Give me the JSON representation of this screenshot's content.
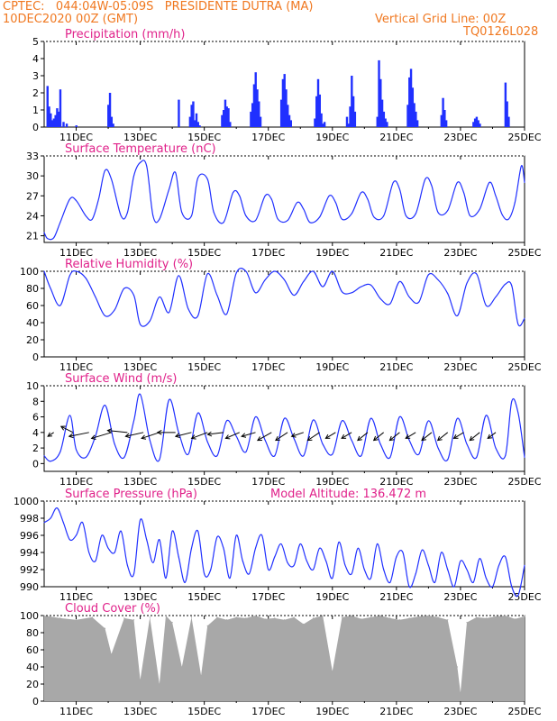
{
  "header": {
    "line1": "CPTEC:   044:04W-05:09S   PRESIDENTE DUTRA (MA)",
    "line2": "10DEC2020 00Z (GMT)",
    "grid_note": "Vertical Grid Line: 00Z",
    "run_id": "TQ0126L028"
  },
  "colors": {
    "header": "#f07820",
    "title": "#e0218a",
    "series": "#2030ff",
    "cloud": "#a8a8a8",
    "axis": "#000000"
  },
  "x_ticks": [
    "11DEC",
    "13DEC",
    "15DEC",
    "17DEC",
    "19DEC",
    "21DEC",
    "23DEC",
    "25DEC"
  ],
  "chart_data": [
    {
      "id": "precip",
      "type": "bar",
      "title": "Precipitation (mm/h)",
      "y_range": [
        0,
        5
      ],
      "y_ticks": [
        "0",
        "1",
        "2",
        "3",
        "4",
        "5"
      ],
      "x": [
        "10.10",
        "10.15",
        "10.20",
        "10.25",
        "10.30",
        "10.35",
        "10.40",
        "10.45",
        "10.50",
        "10.60",
        "10.70",
        "11.0",
        "12.00",
        "12.05",
        "12.10",
        "12.15",
        "14.20",
        "14.55",
        "14.60",
        "14.65",
        "14.70",
        "14.75",
        "14.80",
        "14.85",
        "15.55",
        "15.60",
        "15.65",
        "15.70",
        "15.75",
        "15.80",
        "16.45",
        "16.50",
        "16.55",
        "16.60",
        "16.65",
        "16.70",
        "16.75",
        "17.40",
        "17.45",
        "17.50",
        "17.55",
        "17.60",
        "17.65",
        "17.70",
        "18.45",
        "18.50",
        "18.55",
        "18.60",
        "18.65",
        "18.70",
        "18.75",
        "19.45",
        "19.50",
        "19.55",
        "19.60",
        "19.65",
        "19.70",
        "20.40",
        "20.45",
        "20.50",
        "20.55",
        "20.60",
        "20.65",
        "20.70",
        "21.35",
        "21.40",
        "21.45",
        "21.50",
        "21.55",
        "21.60",
        "21.65",
        "22.40",
        "22.45",
        "22.50",
        "22.55",
        "23.40",
        "23.45",
        "23.50",
        "23.55",
        "23.60",
        "24.40",
        "24.45",
        "24.50"
      ],
      "values": [
        2.4,
        1.2,
        0.8,
        0.4,
        0.5,
        0.7,
        1.1,
        0.9,
        2.2,
        0.3,
        0.2,
        0.1,
        1.3,
        2.0,
        0.6,
        0.2,
        1.6,
        0.6,
        1.3,
        1.5,
        0.4,
        0.8,
        0.3,
        0.1,
        0.7,
        1.0,
        1.6,
        1.2,
        1.1,
        0.3,
        0.9,
        1.4,
        2.5,
        3.2,
        2.2,
        1.5,
        0.6,
        1.6,
        2.8,
        3.1,
        2.2,
        1.3,
        0.7,
        0.4,
        0.5,
        1.8,
        2.8,
        1.9,
        0.8,
        0.2,
        0.3,
        0.6,
        0.2,
        1.2,
        3.0,
        1.8,
        0.9,
        0.6,
        3.9,
        2.8,
        1.6,
        0.9,
        0.5,
        0.3,
        1.3,
        2.9,
        3.4,
        2.3,
        1.4,
        0.9,
        0.4,
        0.7,
        1.7,
        1.0,
        0.4,
        0.3,
        0.5,
        0.6,
        0.4,
        0.2,
        2.6,
        1.5,
        0.6
      ]
    },
    {
      "id": "temp",
      "type": "line",
      "title": "Surface Temperature (nC)",
      "y_range": [
        20,
        33
      ],
      "y_ticks": [
        "21",
        "24",
        "27",
        "30",
        "33"
      ],
      "x": [
        10.0,
        10.1,
        10.3,
        10.5,
        10.8,
        11.0,
        11.3,
        11.5,
        11.7,
        11.9,
        12.1,
        12.4,
        12.6,
        12.8,
        13.0,
        13.2,
        13.4,
        13.6,
        13.9,
        14.1,
        14.3,
        14.6,
        14.8,
        15.1,
        15.3,
        15.6,
        15.9,
        16.1,
        16.3,
        16.6,
        16.9,
        17.1,
        17.3,
        17.6,
        17.9,
        18.1,
        18.3,
        18.6,
        18.9,
        19.1,
        19.3,
        19.6,
        19.9,
        20.1,
        20.3,
        20.6,
        20.9,
        21.1,
        21.3,
        21.6,
        21.9,
        22.1,
        22.3,
        22.6,
        22.9,
        23.1,
        23.3,
        23.6,
        23.9,
        24.1,
        24.3,
        24.5,
        24.7,
        24.9,
        25.0
      ],
      "values": [
        21.5,
        20.6,
        20.7,
        23.0,
        26.5,
        26.3,
        24.0,
        23.5,
        26.5,
        30.8,
        29.5,
        24.0,
        24.5,
        30.0,
        32.0,
        31.5,
        24.0,
        23.5,
        28.0,
        30.5,
        24.5,
        24.0,
        29.7,
        29.5,
        24.5,
        23.0,
        27.5,
        27.0,
        24.0,
        23.3,
        27.0,
        26.5,
        23.5,
        23.3,
        26.0,
        25.0,
        23.0,
        23.8,
        27.0,
        26.0,
        23.5,
        24.3,
        27.5,
        26.5,
        23.8,
        24.0,
        29.0,
        28.0,
        24.0,
        24.3,
        29.5,
        28.5,
        24.5,
        24.8,
        29.0,
        27.5,
        24.0,
        25.0,
        29.0,
        27.0,
        24.2,
        23.5,
        26.0,
        31.5,
        29.0
      ]
    },
    {
      "id": "rh",
      "type": "line",
      "title": "Relative Humidity (%)",
      "y_range": [
        0,
        100
      ],
      "y_ticks": [
        "0",
        "20",
        "40",
        "60",
        "80",
        "100"
      ],
      "x": [
        10.0,
        10.2,
        10.5,
        10.8,
        11.0,
        11.3,
        11.6,
        11.9,
        12.2,
        12.5,
        12.8,
        13.0,
        13.3,
        13.6,
        13.9,
        14.2,
        14.5,
        14.8,
        15.1,
        15.4,
        15.7,
        16.0,
        16.3,
        16.6,
        16.9,
        17.2,
        17.5,
        17.8,
        18.1,
        18.4,
        18.7,
        19.0,
        19.3,
        19.6,
        19.9,
        20.2,
        20.5,
        20.8,
        21.1,
        21.4,
        21.7,
        22.0,
        22.3,
        22.6,
        22.9,
        23.2,
        23.5,
        23.8,
        24.1,
        24.4,
        24.6,
        24.8,
        25.0
      ],
      "values": [
        100,
        80,
        60,
        95,
        100,
        92,
        70,
        48,
        55,
        80,
        72,
        38,
        42,
        70,
        52,
        95,
        56,
        48,
        97,
        72,
        50,
        98,
        100,
        75,
        90,
        100,
        90,
        72,
        88,
        100,
        82,
        100,
        76,
        75,
        82,
        84,
        68,
        62,
        88,
        70,
        64,
        96,
        90,
        74,
        48,
        86,
        97,
        60,
        70,
        85,
        83,
        38,
        45
      ]
    },
    {
      "id": "wind",
      "type": "line",
      "title": "Surface Wind (m/s)",
      "y_range": [
        -1,
        10
      ],
      "y_ticks": [
        "0",
        "2",
        "4",
        "6",
        "8",
        "10"
      ],
      "x": [
        10.0,
        10.2,
        10.5,
        10.8,
        11.0,
        11.3,
        11.6,
        11.9,
        12.2,
        12.5,
        12.8,
        13.0,
        13.3,
        13.6,
        13.9,
        14.2,
        14.5,
        14.8,
        15.1,
        15.4,
        15.7,
        16.0,
        16.3,
        16.6,
        16.9,
        17.2,
        17.5,
        17.8,
        18.1,
        18.4,
        18.7,
        19.0,
        19.3,
        19.6,
        19.9,
        20.2,
        20.5,
        20.8,
        21.1,
        21.4,
        21.7,
        22.0,
        22.3,
        22.6,
        22.9,
        23.2,
        23.5,
        23.8,
        24.1,
        24.4,
        24.6,
        24.8,
        25.0
      ],
      "values": [
        1.0,
        0.3,
        1.5,
        6.2,
        1.8,
        0.8,
        3.5,
        7.5,
        2.5,
        0.8,
        5.5,
        8.9,
        3.0,
        0.5,
        8.2,
        4.0,
        1.2,
        6.5,
        2.8,
        1.0,
        5.5,
        3.5,
        1.5,
        6.0,
        3.0,
        1.0,
        5.8,
        3.2,
        1.0,
        5.6,
        2.5,
        1.2,
        5.5,
        3.0,
        1.0,
        5.8,
        2.5,
        0.8,
        6.0,
        3.0,
        1.2,
        5.5,
        2.0,
        0.5,
        5.8,
        2.5,
        0.8,
        6.2,
        2.0,
        1.0,
        8.0,
        6.5,
        0.8
      ],
      "vectors": {
        "x": [
          10.3,
          10.9,
          11.4,
          12.1,
          12.6,
          13.1,
          13.6,
          14.1,
          14.6,
          15.1,
          15.6,
          16.1,
          16.6,
          17.1,
          17.6,
          18.1,
          18.6,
          19.1,
          19.6,
          20.1,
          20.6,
          21.1,
          21.6,
          22.1,
          22.6,
          23.1,
          23.6,
          24.1
        ],
        "u": [
          -0.3,
          -0.6,
          -1.0,
          -1.0,
          -1.0,
          -0.9,
          -0.9,
          -0.9,
          -0.8,
          -0.8,
          -0.8,
          -0.7,
          -0.7,
          -0.7,
          -0.6,
          -0.6,
          -0.6,
          -0.5,
          -0.5,
          -0.5,
          -0.5,
          -0.5,
          -0.5,
          -0.5,
          -0.5,
          -0.5,
          -0.5,
          -0.4
        ],
        "v": [
          -0.2,
          0.3,
          -0.2,
          -0.3,
          0.1,
          -0.2,
          -0.3,
          0.0,
          -0.2,
          -0.3,
          -0.1,
          -0.3,
          -0.2,
          -0.4,
          -0.4,
          -0.2,
          -0.4,
          -0.3,
          -0.3,
          -0.4,
          -0.4,
          -0.4,
          -0.3,
          -0.4,
          -0.4,
          -0.3,
          -0.4,
          -0.3
        ]
      }
    },
    {
      "id": "pres",
      "type": "line",
      "title": "Surface Pressure (hPa)",
      "annotation": "Model Altitude: 136.472 m",
      "y_range": [
        990,
        1000
      ],
      "y_ticks": [
        "990",
        "992",
        "994",
        "996",
        "998",
        "1000"
      ],
      "x": [
        10.0,
        10.2,
        10.4,
        10.6,
        10.8,
        11.0,
        11.2,
        11.4,
        11.6,
        11.8,
        12.0,
        12.2,
        12.4,
        12.6,
        12.8,
        13.0,
        13.2,
        13.4,
        13.6,
        13.8,
        14.0,
        14.2,
        14.4,
        14.6,
        14.8,
        15.0,
        15.2,
        15.4,
        15.6,
        15.8,
        16.0,
        16.2,
        16.4,
        16.6,
        16.8,
        17.0,
        17.2,
        17.4,
        17.6,
        17.8,
        18.0,
        18.2,
        18.4,
        18.6,
        18.8,
        19.0,
        19.2,
        19.4,
        19.6,
        19.8,
        20.0,
        20.2,
        20.4,
        20.6,
        20.8,
        21.0,
        21.2,
        21.4,
        21.6,
        21.8,
        22.0,
        22.2,
        22.4,
        22.6,
        22.8,
        23.0,
        23.2,
        23.4,
        23.6,
        23.8,
        24.0,
        24.2,
        24.4,
        24.6,
        24.8,
        25.0
      ],
      "values": [
        997.5,
        998.0,
        999.2,
        997.5,
        995.5,
        996.0,
        997.5,
        994.0,
        993.0,
        996.0,
        994.5,
        994.0,
        996.5,
        992.5,
        991.5,
        997.8,
        995.5,
        992.8,
        995.5,
        991.0,
        996.5,
        993.5,
        990.5,
        994.5,
        996.5,
        991.5,
        992.0,
        995.8,
        994.5,
        991.0,
        996.0,
        993.0,
        991.5,
        994.5,
        996.0,
        992.0,
        993.5,
        995.0,
        992.8,
        992.5,
        995.0,
        993.0,
        992.0,
        994.5,
        993.0,
        991.0,
        995.2,
        992.5,
        991.5,
        994.5,
        992.0,
        991.0,
        995.0,
        992.0,
        990.5,
        993.5,
        994.0,
        990.0,
        991.5,
        994.3,
        992.5,
        990.5,
        994.0,
        992.0,
        990.0,
        993.0,
        992.0,
        990.5,
        993.3,
        991.0,
        990.0,
        992.5,
        993.5,
        990.0,
        989.0,
        992.5
      ]
    },
    {
      "id": "cloud",
      "type": "area",
      "title": "Cloud Cover (%)",
      "y_range": [
        0,
        100
      ],
      "y_ticks": [
        "0",
        "20",
        "40",
        "60",
        "80",
        "100"
      ],
      "x": [
        10.0,
        10.5,
        11.0,
        11.5,
        11.9,
        12.1,
        12.5,
        12.8,
        13.0,
        13.3,
        13.6,
        13.8,
        14.0,
        14.3,
        14.6,
        14.9,
        15.1,
        15.4,
        15.7,
        16.0,
        16.3,
        16.6,
        16.9,
        17.2,
        17.5,
        17.8,
        18.1,
        18.4,
        18.7,
        19.0,
        19.3,
        19.6,
        19.9,
        20.2,
        20.5,
        20.8,
        21.1,
        21.4,
        21.7,
        22.0,
        22.3,
        22.6,
        22.9,
        23.0,
        23.2,
        23.5,
        23.8,
        24.1,
        24.4,
        24.7,
        25.0
      ],
      "values": [
        100,
        97,
        95,
        98,
        85,
        55,
        97,
        95,
        25,
        98,
        20,
        100,
        92,
        40,
        98,
        30,
        88,
        98,
        95,
        98,
        97,
        100,
        96,
        97,
        95,
        98,
        90,
        97,
        100,
        35,
        98,
        100,
        96,
        98,
        100,
        97,
        95,
        97,
        99,
        100,
        98,
        95,
        40,
        10,
        92,
        98,
        97,
        99,
        100,
        96,
        99
      ]
    }
  ]
}
